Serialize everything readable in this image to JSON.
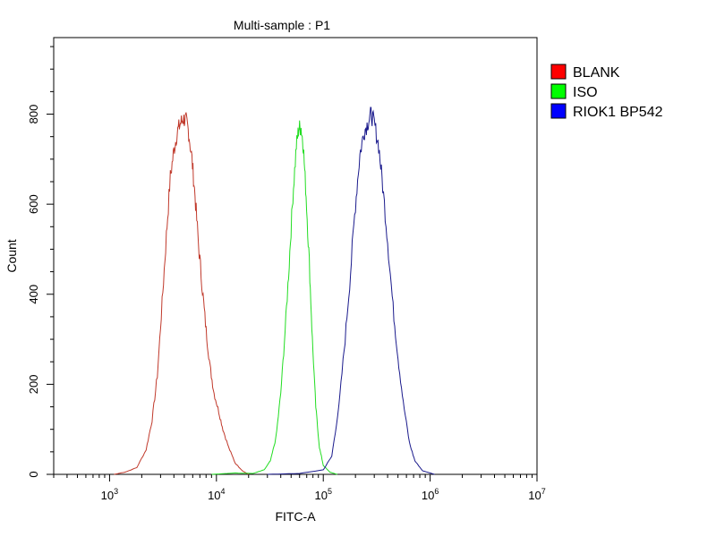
{
  "chart_data": {
    "type": "line",
    "title": "Multi-sample : P1",
    "xlabel": "FITC-A",
    "ylabel": "Count",
    "x_scale": "log",
    "xlim": [
      300,
      10000000
    ],
    "ylim": [
      0,
      970
    ],
    "grid": false,
    "legend_position": "right",
    "y_ticks": [
      "0",
      "200",
      "400",
      "600",
      "800"
    ],
    "y_tick_values": [
      0,
      200,
      400,
      600,
      800
    ],
    "x_ticks": [
      {
        "base": "10",
        "exp": "3",
        "value": 1000
      },
      {
        "base": "10",
        "exp": "4",
        "value": 10000
      },
      {
        "base": "10",
        "exp": "5",
        "value": 100000
      },
      {
        "base": "10",
        "exp": "6",
        "value": 1000000
      },
      {
        "base": "10",
        "exp": "7",
        "value": 10000000
      }
    ],
    "series": [
      {
        "name": "BLANK",
        "color": "#c0392b",
        "swatch": "#ff0000",
        "points": [
          [
            1100,
            0
          ],
          [
            1400,
            5
          ],
          [
            1800,
            15
          ],
          [
            2200,
            55
          ],
          [
            2500,
            120
          ],
          [
            2800,
            220
          ],
          [
            3100,
            380
          ],
          [
            3400,
            530
          ],
          [
            3700,
            660
          ],
          [
            4000,
            720
          ],
          [
            4300,
            760
          ],
          [
            4600,
            780
          ],
          [
            4900,
            790
          ],
          [
            5200,
            785
          ],
          [
            5500,
            760
          ],
          [
            5900,
            700
          ],
          [
            6300,
            620
          ],
          [
            6800,
            510
          ],
          [
            7400,
            410
          ],
          [
            8000,
            320
          ],
          [
            8700,
            240
          ],
          [
            9500,
            180
          ],
          [
            10500,
            140
          ],
          [
            11500,
            100
          ],
          [
            13000,
            60
          ],
          [
            15000,
            25
          ],
          [
            17500,
            8
          ],
          [
            20000,
            0
          ]
        ]
      },
      {
        "name": "ISO",
        "color": "#22dd22",
        "swatch": "#00ff00",
        "points": [
          [
            9000,
            0
          ],
          [
            15000,
            3
          ],
          [
            22000,
            2
          ],
          [
            28000,
            10
          ],
          [
            32000,
            30
          ],
          [
            36000,
            80
          ],
          [
            40000,
            180
          ],
          [
            44000,
            320
          ],
          [
            48000,
            470
          ],
          [
            52000,
            620
          ],
          [
            56000,
            730
          ],
          [
            59000,
            770
          ],
          [
            62000,
            770
          ],
          [
            65000,
            730
          ],
          [
            69000,
            620
          ],
          [
            74000,
            470
          ],
          [
            79000,
            300
          ],
          [
            85000,
            150
          ],
          [
            92000,
            60
          ],
          [
            100000,
            20
          ],
          [
            115000,
            5
          ],
          [
            135000,
            0
          ]
        ]
      },
      {
        "name": "RIOK1 BP542",
        "color": "#1a1a8c",
        "swatch": "#0000ff",
        "points": [
          [
            30000,
            0
          ],
          [
            60000,
            2
          ],
          [
            100000,
            10
          ],
          [
            120000,
            40
          ],
          [
            140000,
            150
          ],
          [
            160000,
            300
          ],
          [
            180000,
            450
          ],
          [
            200000,
            600
          ],
          [
            220000,
            710
          ],
          [
            240000,
            760
          ],
          [
            260000,
            780
          ],
          [
            280000,
            800
          ],
          [
            300000,
            780
          ],
          [
            330000,
            730
          ],
          [
            360000,
            640
          ],
          [
            400000,
            520
          ],
          [
            450000,
            370
          ],
          [
            500000,
            260
          ],
          [
            560000,
            160
          ],
          [
            640000,
            70
          ],
          [
            720000,
            30
          ],
          [
            850000,
            8
          ],
          [
            1100000,
            0
          ]
        ]
      }
    ]
  }
}
